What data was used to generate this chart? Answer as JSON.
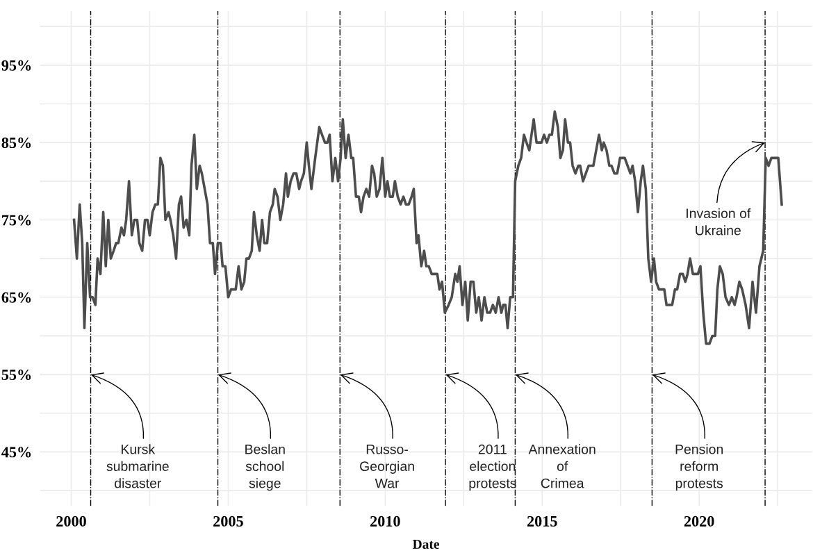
{
  "chart_data": {
    "type": "line",
    "xlabel": "Date",
    "x": [
      2000.09,
      2000.18,
      2000.27,
      2000.35,
      2000.42,
      2000.51,
      2000.6,
      2000.68,
      2000.77,
      2000.84,
      2000.93,
      2001.02,
      2001.1,
      2001.18,
      2001.26,
      2001.35,
      2001.43,
      2001.5,
      2001.6,
      2001.68,
      2001.75,
      2001.84,
      2001.93,
      2002.01,
      2002.1,
      2002.17,
      2002.26,
      2002.35,
      2002.43,
      2002.5,
      2002.59,
      2002.68,
      2002.76,
      2002.84,
      2002.92,
      2003.0,
      2003.1,
      2003.16,
      2003.25,
      2003.34,
      2003.43,
      2003.5,
      2003.58,
      2003.67,
      2003.76,
      2003.83,
      2003.92,
      2004.0,
      2004.09,
      2004.16,
      2004.25,
      2004.34,
      2004.42,
      2004.51,
      2004.58,
      2004.67,
      2004.76,
      2004.82,
      2004.91,
      2005.0,
      2005.09,
      2005.18,
      2005.24,
      2005.33,
      2005.42,
      2005.51,
      2005.58,
      2005.66,
      2005.75,
      2005.82,
      2005.91,
      2006.0,
      2006.08,
      2006.15,
      2006.24,
      2006.33,
      2006.42,
      2006.48,
      2006.57,
      2006.66,
      2006.75,
      2006.84,
      2006.9,
      2006.99,
      2007.08,
      2007.17,
      2007.26,
      2007.32,
      2007.41,
      2007.5,
      2007.57,
      2007.65,
      2007.77,
      2007.9,
      2007.99,
      2008.08,
      2008.16,
      2008.23,
      2008.32,
      2008.41,
      2008.5,
      2008.58,
      2008.65,
      2008.74,
      2008.83,
      2008.92,
      2008.98,
      2009.07,
      2009.16,
      2009.23,
      2009.31,
      2009.4,
      2009.49,
      2009.58,
      2009.65,
      2009.73,
      2009.82,
      2009.91,
      2010.0,
      2010.07,
      2010.15,
      2010.24,
      2010.31,
      2010.4,
      2010.49,
      2010.58,
      2010.66,
      2010.75,
      2010.84,
      2010.91,
      2011.0,
      2011.06,
      2011.15,
      2011.24,
      2011.31,
      2011.39,
      2011.48,
      2011.57,
      2011.66,
      2011.73,
      2011.81,
      2011.9,
      2012.02,
      2012.12,
      2012.23,
      2012.3,
      2012.37,
      2012.46,
      2012.55,
      2012.63,
      2012.72,
      2012.81,
      2012.9,
      2012.98,
      2013.07,
      2013.16,
      2013.25,
      2013.34,
      2013.43,
      2013.52,
      2013.61,
      2013.7,
      2013.76,
      2013.83,
      2013.9,
      2013.98,
      2014.07,
      2014.14,
      2014.24,
      2014.33,
      2014.42,
      2014.5,
      2014.59,
      2014.73,
      2014.82,
      2014.9,
      2014.98,
      2015.06,
      2015.15,
      2015.23,
      2015.31,
      2015.4,
      2015.5,
      2015.58,
      2015.66,
      2015.73,
      2015.82,
      2015.89,
      2015.97,
      2016.06,
      2016.15,
      2016.21,
      2016.3,
      2016.39,
      2016.48,
      2016.54,
      2016.63,
      2016.72,
      2016.81,
      2016.9,
      2016.96,
      2017.05,
      2017.14,
      2017.21,
      2017.3,
      2017.39,
      2017.48,
      2017.56,
      2017.63,
      2017.72,
      2017.81,
      2017.88,
      2017.96,
      2018.05,
      2018.14,
      2018.21,
      2018.3,
      2018.38,
      2018.47,
      2018.56,
      2018.63,
      2018.72,
      2018.81,
      2018.89,
      2018.96,
      2019.05,
      2019.14,
      2019.23,
      2019.3,
      2019.39,
      2019.48,
      2019.56,
      2019.63,
      2019.71,
      2019.8,
      2019.89,
      2019.96,
      2020.04,
      2020.13,
      2020.22,
      2020.33,
      2020.42,
      2020.51,
      2020.58,
      2020.66,
      2020.75,
      2020.84,
      2020.95,
      2021.04,
      2021.13,
      2021.19,
      2021.28,
      2021.37,
      2021.48,
      2021.59,
      2021.7,
      2021.81,
      2021.92,
      2022.04,
      2022.12,
      2022.21,
      2022.3,
      2022.39,
      2022.52,
      2022.63
    ],
    "series": [
      {
        "color": "#4d4d4d",
        "values": [
          75,
          70,
          77,
          72,
          61,
          72,
          65,
          65,
          64,
          70,
          68,
          76,
          69,
          75,
          70,
          71,
          72,
          72,
          74,
          73,
          75,
          80,
          73,
          75,
          75,
          72,
          71,
          75,
          75,
          73,
          76,
          77,
          77,
          83,
          82,
          75,
          76,
          75,
          73,
          70,
          77,
          78,
          74,
          75,
          73,
          82,
          86,
          79,
          82,
          81,
          79,
          77,
          72,
          72,
          68,
          72,
          72,
          69,
          69,
          65,
          66,
          66,
          66,
          69,
          66,
          67,
          70,
          70,
          71,
          76,
          73,
          71,
          75,
          72,
          72,
          76,
          77,
          79,
          78,
          75,
          77,
          81,
          78,
          80,
          81,
          81,
          79,
          80,
          81,
          85,
          82,
          79,
          83,
          87,
          86,
          85,
          85,
          86,
          80,
          83,
          80,
          83,
          88,
          83,
          86,
          83,
          83,
          78,
          78,
          76,
          78,
          79,
          78,
          82,
          81,
          78,
          79,
          83,
          78,
          80,
          78,
          78,
          80,
          78,
          77,
          78,
          77,
          77,
          78,
          79,
          72,
          73,
          69,
          71,
          69,
          69,
          68,
          68,
          68,
          66,
          67,
          63,
          64,
          65,
          68,
          67,
          69,
          64,
          67,
          62,
          67,
          67,
          63,
          65,
          62,
          65,
          63,
          63,
          64,
          63,
          65,
          63,
          64,
          64,
          61,
          65,
          65,
          80,
          82,
          83,
          86,
          85,
          84,
          88,
          85,
          85,
          85,
          86,
          85,
          86,
          86,
          89,
          87,
          83,
          84,
          88,
          85,
          85,
          82,
          81,
          82,
          82,
          80,
          81,
          82,
          82,
          82,
          84,
          86,
          84,
          85,
          84,
          82,
          82,
          81,
          81,
          83,
          83,
          83,
          82,
          81,
          82,
          80,
          76,
          80,
          82,
          79,
          70,
          67,
          70,
          67,
          66,
          66,
          66,
          64,
          64,
          64,
          66,
          66,
          68,
          68,
          67,
          68,
          70,
          68,
          68,
          68,
          69,
          63,
          59,
          59,
          60,
          60,
          66,
          69,
          68,
          65,
          64,
          65,
          64,
          65,
          67,
          66,
          64,
          61,
          67,
          63,
          69,
          71,
          83,
          82,
          83,
          83,
          83,
          77
        ]
      }
    ],
    "xlim": [
      1999,
      2023.6
    ],
    "ylim": [
      38,
      102
    ],
    "xticks": [
      2000,
      {
        "value": 2002.5,
        "label": null
      },
      2005,
      {
        "value": 2007.5,
        "label": null
      },
      2010,
      {
        "value": 2012.5,
        "label": null
      },
      2015,
      {
        "value": 2017.5,
        "label": null
      },
      2020,
      {
        "value": 2022.5,
        "label": null
      }
    ],
    "yticks": [
      {
        "value": 40,
        "label": null
      },
      {
        "value": 45,
        "label": "45%"
      },
      {
        "value": 50,
        "label": null
      },
      {
        "value": 55,
        "label": "55%"
      },
      {
        "value": 60,
        "label": null
      },
      {
        "value": 65,
        "label": "65%"
      },
      {
        "value": 70,
        "label": null
      },
      {
        "value": 75,
        "label": "75%"
      },
      {
        "value": 80,
        "label": null
      },
      {
        "value": 85,
        "label": "85%"
      },
      {
        "value": 90,
        "label": null
      },
      {
        "value": 95,
        "label": "95%"
      },
      {
        "value": 100,
        "label": null
      }
    ],
    "grid": true,
    "ref_lines": [
      {
        "axis": "x",
        "value": 2000.62,
        "color": "#000000",
        "line_style": "dashdot"
      },
      {
        "axis": "x",
        "value": 2004.67,
        "color": "#000000",
        "line_style": "dashdot"
      },
      {
        "axis": "x",
        "value": 2008.56,
        "color": "#000000",
        "line_style": "dashdot"
      },
      {
        "axis": "x",
        "value": 2011.92,
        "color": "#000000",
        "line_style": "dashdot"
      },
      {
        "axis": "x",
        "value": 2014.14,
        "color": "#000000",
        "line_style": "dashdot"
      },
      {
        "axis": "x",
        "value": 2018.5,
        "color": "#000000",
        "line_style": "dashdot"
      },
      {
        "axis": "x",
        "value": 2022.1,
        "color": "#000000",
        "line_style": "dashdot"
      }
    ],
    "annotations": [
      {
        "text": "Kursk\nsubmarine\ndisaster",
        "x": 2000.62,
        "y": 55
      },
      {
        "text": "Beslan\nschool\nsiege",
        "x": 2004.67,
        "y": 55
      },
      {
        "text": "Russo-\nGeorgian\nWar",
        "x": 2008.56,
        "y": 55
      },
      {
        "text": "2011\nelection\nprotests",
        "x": 2011.92,
        "y": 55
      },
      {
        "text": "Annexation\nof\nCrimea",
        "x": 2014.14,
        "y": 55
      },
      {
        "text": "Pension\nreform\nprotests",
        "x": 2018.5,
        "y": 55
      },
      {
        "text": "Invasion of\nUkraine",
        "x": 2022.1,
        "y": 85
      }
    ]
  }
}
